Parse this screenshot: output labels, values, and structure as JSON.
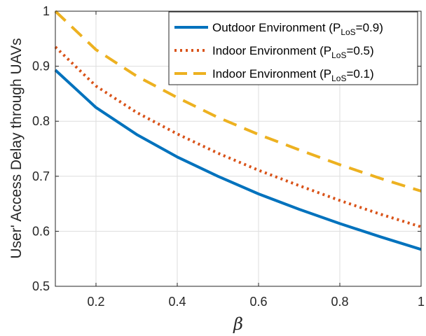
{
  "chart_data": {
    "type": "line",
    "title": "",
    "xlabel": "β",
    "ylabel": "User' Access Delay through UAVs",
    "xlim": [
      0.1,
      1.0
    ],
    "ylim": [
      0.5,
      1.0
    ],
    "xticks": [
      0.2,
      0.4,
      0.6,
      0.8,
      1.0
    ],
    "xtick_labels": [
      "0.2",
      "0.4",
      "0.6",
      "0.8",
      "1"
    ],
    "yticks": [
      0.5,
      0.6,
      0.7,
      0.8,
      0.9,
      1.0
    ],
    "ytick_labels": [
      "0.5",
      "0.6",
      "0.7",
      "0.8",
      "0.9",
      "1"
    ],
    "grid": true,
    "legend_position": "top-right",
    "x": [
      0.1,
      0.2,
      0.3,
      0.4,
      0.5,
      0.6,
      0.7,
      0.8,
      0.9,
      1.0
    ],
    "series": [
      {
        "name": "Outdoor Environment (P",
        "name_sub": "LoS",
        "name_suffix": "=0.9)",
        "style": "solid",
        "color": "#0072BD",
        "values": [
          0.893,
          0.825,
          0.776,
          0.735,
          0.7,
          0.668,
          0.64,
          0.614,
          0.59,
          0.567
        ]
      },
      {
        "name": "Indoor Environment (P",
        "name_sub": "LoS",
        "name_suffix": "=0.5)",
        "style": "dotted",
        "color": "#D95319",
        "values": [
          0.935,
          0.864,
          0.816,
          0.777,
          0.742,
          0.711,
          0.683,
          0.656,
          0.631,
          0.608
        ]
      },
      {
        "name": "Indoor Environment (P",
        "name_sub": "LoS",
        "name_suffix": "=0.1)",
        "style": "dashed",
        "color": "#EDB120",
        "values": [
          1.0,
          0.93,
          0.882,
          0.843,
          0.807,
          0.776,
          0.748,
          0.721,
          0.696,
          0.673
        ]
      }
    ]
  }
}
